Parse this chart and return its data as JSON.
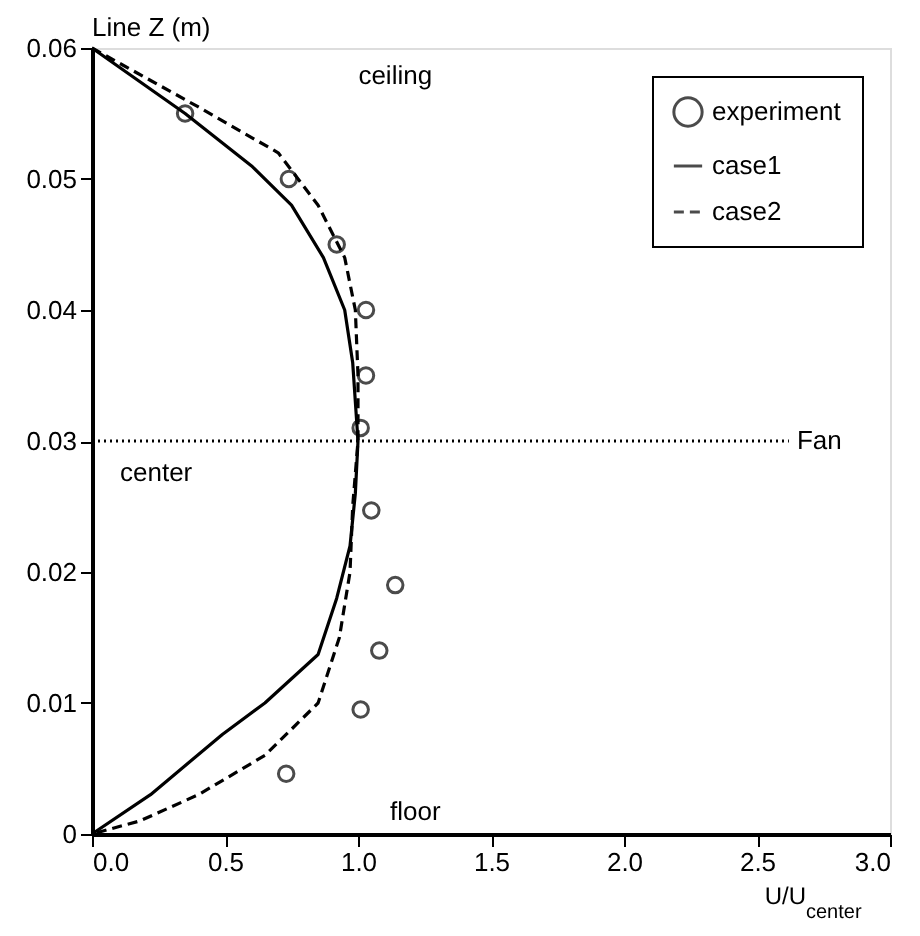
{
  "chart_data": {
    "type": "line",
    "xlabel": "U/U$_{center}$",
    "ylabel": "Line Z (m)",
    "xlim": [
      0,
      3.0
    ],
    "xticks": [
      {
        "value": 0,
        "label": "0.0"
      },
      {
        "value": 0.5,
        "label": "0.5"
      },
      {
        "value": 1,
        "label": "1.0"
      },
      {
        "value": 1.5,
        "label": "1.5"
      },
      {
        "value": 2,
        "label": "2.0"
      },
      {
        "value": 2.5,
        "label": "2.5"
      },
      {
        "value": 3,
        "label": "3.0"
      }
    ],
    "ylim": [
      0,
      0.06
    ],
    "yticks": [
      0,
      0.01,
      0.02,
      0.03,
      0.04,
      0.05,
      0.06
    ],
    "legend": "top right",
    "grid": false,
    "series": [
      {
        "name": "experiment",
        "type": "scatter",
        "marker": "circle",
        "color": "#000000",
        "x": [
          0.35,
          0.74,
          0.92,
          1.03,
          1.03,
          1.01,
          1.05,
          1.14,
          1.08,
          1.01,
          0.73
        ],
        "values": [
          0.055,
          0.05,
          0.045,
          0.04,
          0.035,
          0.031,
          0.0247,
          0.019,
          0.014,
          0.0095,
          0.0046
        ]
      },
      {
        "name": "case1",
        "line_style": "solid",
        "color": "#000000",
        "x": [
          0,
          0.35,
          0.6,
          0.75,
          0.87,
          0.95,
          0.98,
          1.0,
          0.99,
          0.97,
          0.92,
          0.85,
          0.65,
          0.49,
          0.22,
          0
        ],
        "values": [
          0.06,
          0.055,
          0.051,
          0.048,
          0.044,
          0.04,
          0.036,
          0.03,
          0.026,
          0.022,
          0.018,
          0.0137,
          0.01,
          0.0076,
          0.003,
          0
        ]
      },
      {
        "name": "case2",
        "line_style": "dashed",
        "color": "#000000",
        "x": [
          0,
          0.4,
          0.7,
          0.85,
          0.95,
          0.99,
          1.0,
          1.0,
          0.98,
          0.97,
          0.93,
          0.85,
          0.65,
          0.4,
          0.18,
          0
        ],
        "values": [
          0.06,
          0.0555,
          0.052,
          0.048,
          0.044,
          0.04,
          0.035,
          0.03,
          0.025,
          0.02,
          0.015,
          0.01,
          0.006,
          0.003,
          0.001,
          0
        ]
      }
    ],
    "ref_lines": [
      {
        "axis": "y",
        "value": 0.03,
        "label": "center",
        "line_style": "dotted",
        "color": "#000000"
      }
    ],
    "annotations": [
      "ceiling",
      "floor",
      {
        "text": "Fan",
        "x": 2.62,
        "y": 0.03
      }
    ]
  }
}
